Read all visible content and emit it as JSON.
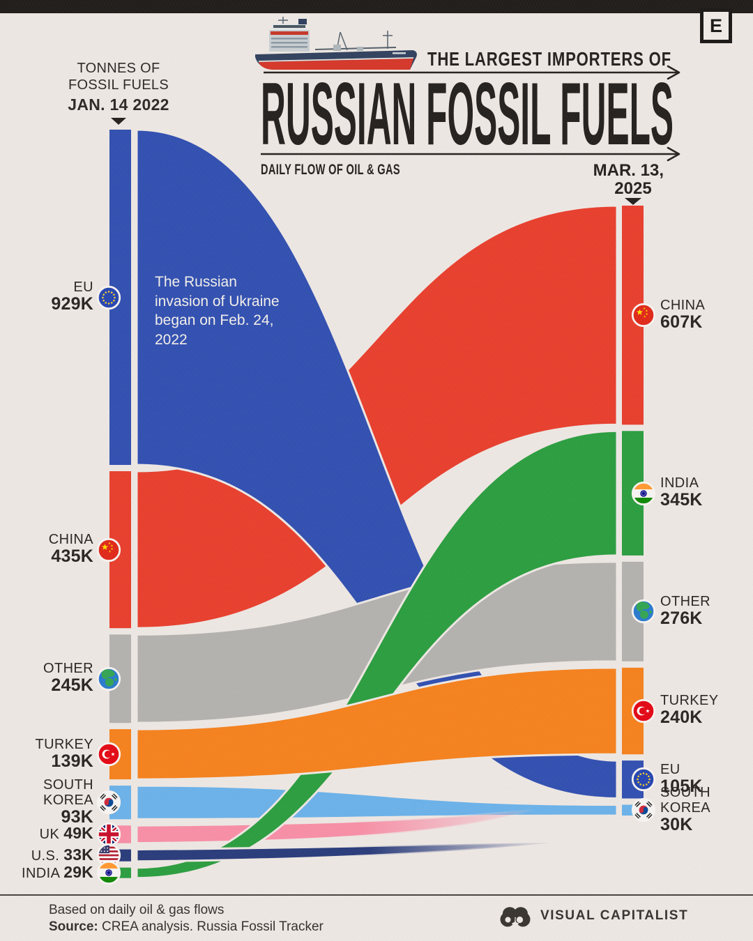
{
  "page": {
    "background": "#EDE7E3",
    "top_bar_color": "#211E1C",
    "corner_letter": "E"
  },
  "header": {
    "kicker": "THE LARGEST IMPORTERS OF",
    "title": "RUSSIAN FOSSIL FUELS",
    "subtitle": "DAILY FLOW OF OIL & GAS",
    "left_axis_line1": "TONNES OF",
    "left_axis_line2": "FOSSIL FUELS",
    "left_axis_date": "JAN. 14 2022",
    "right_date_line1": "MAR. 13,",
    "right_date_line2": "2025"
  },
  "annotation": "The Russian invasion of Ukraine began on Feb. 24, 2022",
  "chart_data": {
    "type": "sankey",
    "title": "The Largest Importers of Russian Fossil Fuels",
    "subtitle": "Daily flow of oil & gas",
    "unit": "tonnes of fossil fuels per day (thousands)",
    "left_column_date": "JAN. 14 2022",
    "right_column_date": "MAR. 13, 2025",
    "left_nodes": [
      {
        "id": "eu",
        "label_lines": [
          "EU"
        ],
        "value": 929,
        "value_label": "929K",
        "inline": false,
        "icon": "flag-eu",
        "color": "#3351B1"
      },
      {
        "id": "china",
        "label_lines": [
          "CHINA"
        ],
        "value": 435,
        "value_label": "435K",
        "inline": false,
        "icon": "flag-china",
        "color": "#E8402F"
      },
      {
        "id": "other",
        "label_lines": [
          "OTHER"
        ],
        "value": 245,
        "value_label": "245K",
        "inline": false,
        "icon": "globe",
        "color": "#B4B2AF"
      },
      {
        "id": "turkey",
        "label_lines": [
          "TURKEY"
        ],
        "value": 139,
        "value_label": "139K",
        "inline": false,
        "icon": "flag-turkey",
        "color": "#F5821F"
      },
      {
        "id": "south-korea",
        "label_lines": [
          "SOUTH",
          "KOREA"
        ],
        "value": 93,
        "value_label": "93K",
        "inline": false,
        "icon": "flag-south-korea",
        "color": "#6CB2E9"
      },
      {
        "id": "uk",
        "label_lines": [
          "UK"
        ],
        "value": 49,
        "value_label": "49K",
        "inline": true,
        "icon": "flag-uk",
        "color": "#F78FA7"
      },
      {
        "id": "us",
        "label_lines": [
          "U.S."
        ],
        "value": 33,
        "value_label": "33K",
        "inline": true,
        "icon": "flag-us",
        "color": "#2B3D7C"
      },
      {
        "id": "india",
        "label_lines": [
          "INDIA"
        ],
        "value": 29,
        "value_label": "29K",
        "inline": true,
        "icon": "flag-india",
        "color": "#2D9E41"
      }
    ],
    "right_nodes": [
      {
        "id": "china",
        "label_lines": [
          "CHINA"
        ],
        "value": 607,
        "value_label": "607K",
        "inline": false,
        "icon": "flag-china",
        "color": "#E8402F"
      },
      {
        "id": "india",
        "label_lines": [
          "INDIA"
        ],
        "value": 345,
        "value_label": "345K",
        "inline": false,
        "icon": "flag-india",
        "color": "#2D9E41"
      },
      {
        "id": "other",
        "label_lines": [
          "OTHER"
        ],
        "value": 276,
        "value_label": "276K",
        "inline": false,
        "icon": "globe",
        "color": "#B4B2AF"
      },
      {
        "id": "turkey",
        "label_lines": [
          "TURKEY"
        ],
        "value": 240,
        "value_label": "240K",
        "inline": false,
        "icon": "flag-turkey",
        "color": "#F5821F"
      },
      {
        "id": "eu",
        "label_lines": [
          "EU"
        ],
        "value": 105,
        "value_label": "105K",
        "inline": false,
        "icon": "flag-eu",
        "color": "#3351B1"
      },
      {
        "id": "south-korea",
        "label_lines": [
          "SOUTH",
          "KOREA"
        ],
        "value": 30,
        "value_label": "30K",
        "inline": false,
        "icon": "flag-south-korea",
        "color": "#6CB2E9"
      }
    ],
    "flows": [
      {
        "from": "china",
        "to": "china"
      },
      {
        "from": "south-korea",
        "to": "south-korea"
      },
      {
        "from": "eu",
        "to": "eu"
      },
      {
        "from": "other",
        "to": "other"
      },
      {
        "from": "uk",
        "to": null
      },
      {
        "from": "india",
        "to": "india"
      },
      {
        "from": "us",
        "to": null
      },
      {
        "from": "turkey",
        "to": "turkey"
      }
    ]
  },
  "footer": {
    "note": "Based on daily oil & gas flows",
    "source_label": "Source:",
    "source_text": " CREA analysis. Russia Fossil Tracker",
    "brand": "VISUAL CAPITALIST"
  }
}
